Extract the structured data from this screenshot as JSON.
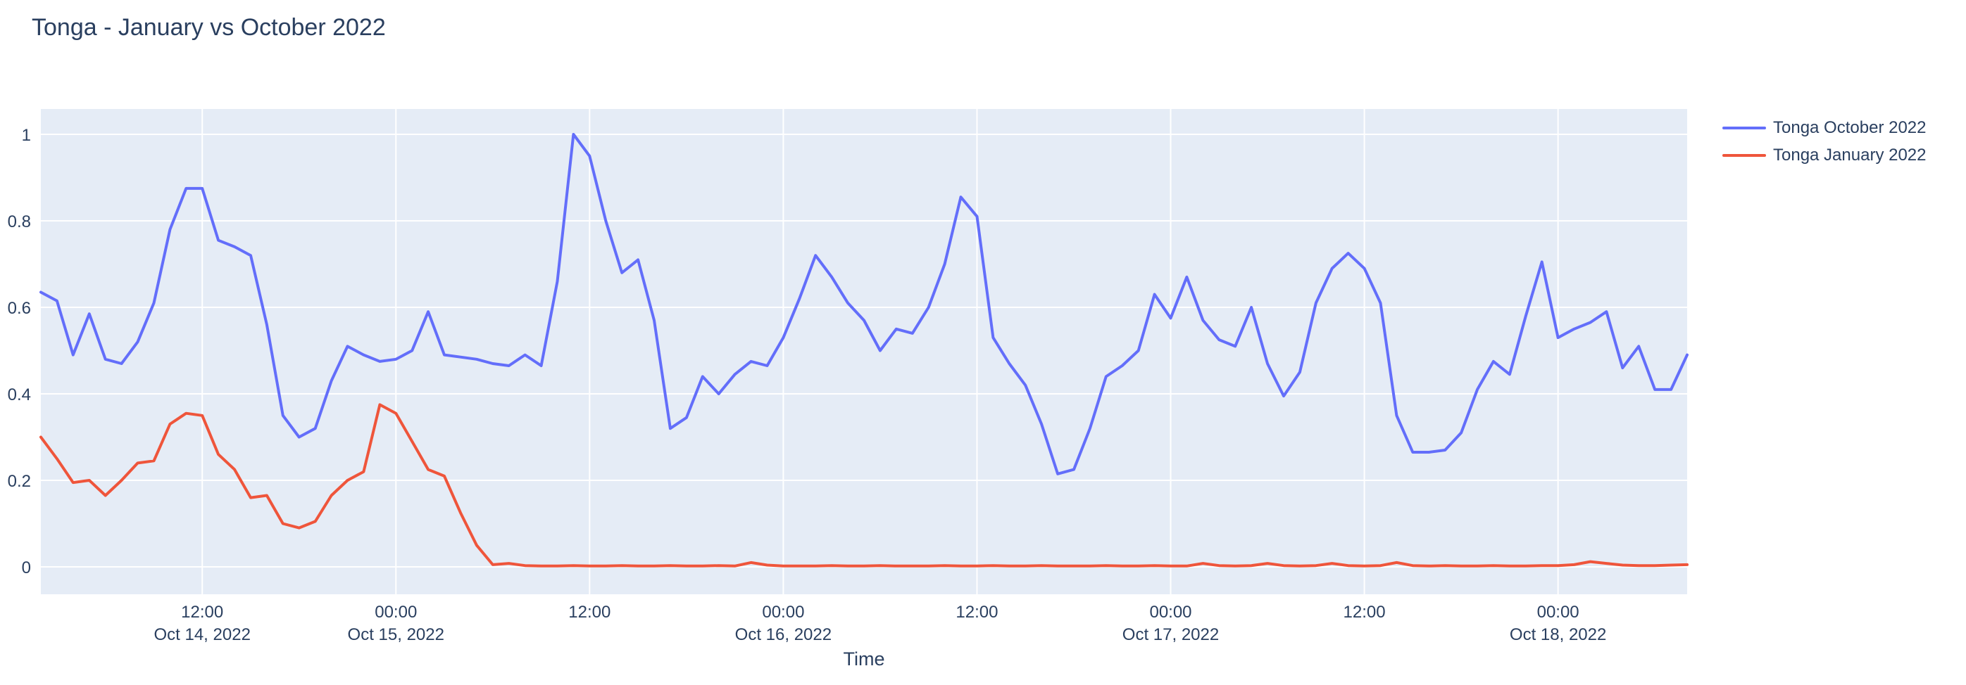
{
  "page": {
    "title": "Tonga - January vs October 2022"
  },
  "colors": {
    "plot_background": "#E5ECF6",
    "grid": "#FFFFFF",
    "text": "#2a3f5f",
    "series_october": "#636EFA",
    "series_january": "#EF553B"
  },
  "chart_data": {
    "type": "line",
    "title": "Tonga - January vs October 2022",
    "xlabel": "Time",
    "ylabel": "",
    "legend_position": "right-top-outside",
    "grid": true,
    "x_unit": "hours since 2022-10-14 00:00",
    "xlim": [
      2,
      104
    ],
    "ylim": [
      -0.06,
      1.06
    ],
    "y_ticks": [
      0,
      0.2,
      0.4,
      0.6,
      0.8,
      1
    ],
    "y_tick_labels": [
      "0",
      "0.2",
      "0.4",
      "0.6",
      "0.8",
      "1"
    ],
    "x_ticks": [
      {
        "hour": 12,
        "time": "12:00",
        "date": "Oct 14, 2022"
      },
      {
        "hour": 24,
        "time": "00:00",
        "date": "Oct 15, 2022"
      },
      {
        "hour": 36,
        "time": "12:00",
        "date": ""
      },
      {
        "hour": 48,
        "time": "00:00",
        "date": "Oct 16, 2022"
      },
      {
        "hour": 60,
        "time": "12:00",
        "date": ""
      },
      {
        "hour": 72,
        "time": "00:00",
        "date": "Oct 17, 2022"
      },
      {
        "hour": 84,
        "time": "12:00",
        "date": ""
      },
      {
        "hour": 96,
        "time": "00:00",
        "date": "Oct 18, 2022"
      }
    ],
    "x_hours": [
      2,
      3,
      4,
      5,
      6,
      7,
      8,
      9,
      10,
      11,
      12,
      13,
      14,
      15,
      16,
      17,
      18,
      19,
      20,
      21,
      22,
      23,
      24,
      25,
      26,
      27,
      28,
      29,
      30,
      31,
      32,
      33,
      34,
      35,
      36,
      37,
      38,
      39,
      40,
      41,
      42,
      43,
      44,
      45,
      46,
      47,
      48,
      49,
      50,
      51,
      52,
      53,
      54,
      55,
      56,
      57,
      58,
      59,
      60,
      61,
      62,
      63,
      64,
      65,
      66,
      67,
      68,
      69,
      70,
      71,
      72,
      73,
      74,
      75,
      76,
      77,
      78,
      79,
      80,
      81,
      82,
      83,
      84,
      85,
      86,
      87,
      88,
      89,
      90,
      91,
      92,
      93,
      94,
      95,
      96,
      97,
      98,
      99,
      100,
      101,
      102,
      103,
      104
    ],
    "series": [
      {
        "name": "Tonga October 2022",
        "color": "#636EFA",
        "values": [
          0.635,
          0.615,
          0.49,
          0.585,
          0.48,
          0.47,
          0.52,
          0.61,
          0.78,
          0.875,
          0.875,
          0.755,
          0.74,
          0.72,
          0.56,
          0.35,
          0.3,
          0.32,
          0.43,
          0.51,
          0.49,
          0.475,
          0.48,
          0.5,
          0.59,
          0.49,
          0.485,
          0.48,
          0.47,
          0.465,
          0.49,
          0.465,
          0.66,
          1.0,
          0.95,
          0.8,
          0.68,
          0.71,
          0.57,
          0.32,
          0.345,
          0.44,
          0.4,
          0.445,
          0.475,
          0.465,
          0.53,
          0.62,
          0.72,
          0.67,
          0.61,
          0.57,
          0.5,
          0.55,
          0.54,
          0.6,
          0.7,
          0.855,
          0.81,
          0.53,
          0.47,
          0.42,
          0.33,
          0.215,
          0.225,
          0.32,
          0.44,
          0.465,
          0.5,
          0.63,
          0.575,
          0.67,
          0.57,
          0.525,
          0.51,
          0.6,
          0.47,
          0.395,
          0.45,
          0.61,
          0.69,
          0.725,
          0.69,
          0.61,
          0.35,
          0.265,
          0.265,
          0.27,
          0.31,
          0.41,
          0.475,
          0.445,
          0.58,
          0.705,
          0.53,
          0.55,
          0.565,
          0.59,
          0.46,
          0.51,
          0.41,
          0.41,
          0.49
        ]
      },
      {
        "name": "Tonga January 2022",
        "color": "#EF553B",
        "values": [
          0.3,
          0.25,
          0.195,
          0.2,
          0.165,
          0.2,
          0.24,
          0.245,
          0.33,
          0.355,
          0.35,
          0.26,
          0.225,
          0.16,
          0.165,
          0.1,
          0.09,
          0.105,
          0.165,
          0.2,
          0.22,
          0.375,
          0.355,
          0.29,
          0.225,
          0.21,
          0.125,
          0.05,
          0.005,
          0.008,
          0.003,
          0.002,
          0.002,
          0.003,
          0.002,
          0.002,
          0.003,
          0.002,
          0.002,
          0.003,
          0.002,
          0.002,
          0.003,
          0.002,
          0.01,
          0.004,
          0.002,
          0.002,
          0.002,
          0.003,
          0.002,
          0.002,
          0.003,
          0.002,
          0.002,
          0.002,
          0.003,
          0.002,
          0.002,
          0.003,
          0.002,
          0.002,
          0.003,
          0.002,
          0.002,
          0.002,
          0.003,
          0.002,
          0.002,
          0.003,
          0.002,
          0.002,
          0.008,
          0.003,
          0.002,
          0.003,
          0.008,
          0.003,
          0.002,
          0.003,
          0.008,
          0.003,
          0.002,
          0.003,
          0.01,
          0.003,
          0.002,
          0.003,
          0.002,
          0.002,
          0.003,
          0.002,
          0.002,
          0.003,
          0.003,
          0.005,
          0.012,
          0.008,
          0.004,
          0.003,
          0.003,
          0.004,
          0.005
        ]
      }
    ]
  }
}
